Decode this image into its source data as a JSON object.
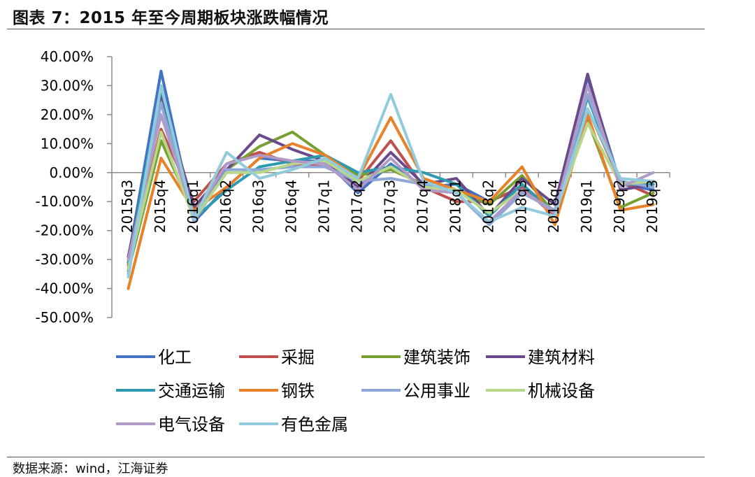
{
  "header": {
    "title": "图表 7：2015 年至今周期板块涨跌幅情况"
  },
  "footer": {
    "source": "数据来源：wind，江海证券"
  },
  "chart_data": {
    "type": "line",
    "title": "",
    "xlabel": "",
    "ylabel": "",
    "ylim": [
      -50,
      40
    ],
    "ytick_step": 10,
    "y_format": "percent_2dp",
    "legend_position": "bottom",
    "categories": [
      "2015q3",
      "2015q4",
      "2016q1",
      "2016q2",
      "2016q3",
      "2016q4",
      "2017q1",
      "2017q2",
      "2017q3",
      "2017q4",
      "2018q1",
      "2018q2",
      "2018q3",
      "2018q4",
      "2019q1",
      "2019q2",
      "2019q3"
    ],
    "series": [
      {
        "name": "化工",
        "color": "#4472c4",
        "values": [
          -30,
          35,
          -17,
          -5,
          5,
          4,
          4,
          -7,
          3,
          -5,
          -4,
          -10,
          -5,
          -15,
          33,
          -4,
          -6
        ]
      },
      {
        "name": "采掘",
        "color": "#c0504d",
        "values": [
          -32,
          15,
          -10,
          3,
          7,
          3,
          2,
          -3,
          11,
          -5,
          -10,
          -10,
          -5,
          -15,
          22,
          -3,
          -8
        ]
      },
      {
        "name": "建筑装饰",
        "color": "#77a033",
        "values": [
          -34,
          11,
          -14,
          1,
          9,
          14,
          6,
          -1,
          1,
          -4,
          -6,
          -11,
          -1,
          -14,
          18,
          -12,
          -7
        ]
      },
      {
        "name": "建筑材料",
        "color": "#6a4a8c",
        "values": [
          -29,
          27,
          -12,
          1,
          13,
          8,
          4,
          -5,
          7,
          -4,
          -2,
          -15,
          -2,
          -11,
          34,
          -6,
          -4
        ]
      },
      {
        "name": "交通运输",
        "color": "#2e9ab0",
        "values": [
          -31,
          29,
          -16,
          -6,
          2,
          4,
          6,
          0,
          2,
          0,
          -4,
          -15,
          -4,
          -14,
          26,
          -4,
          -4
        ]
      },
      {
        "name": "钢铁",
        "color": "#e8822a",
        "values": [
          -40,
          5,
          -13,
          -5,
          5,
          10,
          6,
          -2,
          19,
          -2,
          -6,
          -10,
          2,
          -18,
          20,
          -13,
          -11
        ]
      },
      {
        "name": "公用事业",
        "color": "#8ea7d8",
        "values": [
          -35,
          24,
          -17,
          1,
          1,
          2,
          2,
          -3,
          -2,
          -4,
          -7,
          -18,
          -7,
          -13,
          27,
          -3,
          -5
        ]
      },
      {
        "name": "机械设备",
        "color": "#b8d68c",
        "values": [
          -33,
          14,
          -16,
          0,
          0,
          3,
          4,
          -3,
          2,
          -5,
          -6,
          -14,
          -6,
          -14,
          17,
          -4,
          -3
        ]
      },
      {
        "name": "电气设备",
        "color": "#b09ac8",
        "values": [
          -30,
          20,
          -15,
          3,
          6,
          4,
          3,
          -6,
          5,
          -6,
          -7,
          -17,
          -6,
          -14,
          30,
          -5,
          0
        ]
      },
      {
        "name": "有色金属",
        "color": "#92cbdc",
        "values": [
          -36,
          30,
          -16,
          7,
          -2,
          1,
          5,
          -2,
          27,
          -3,
          -7,
          -17,
          -12,
          -15,
          22,
          -2,
          -3
        ]
      }
    ]
  }
}
